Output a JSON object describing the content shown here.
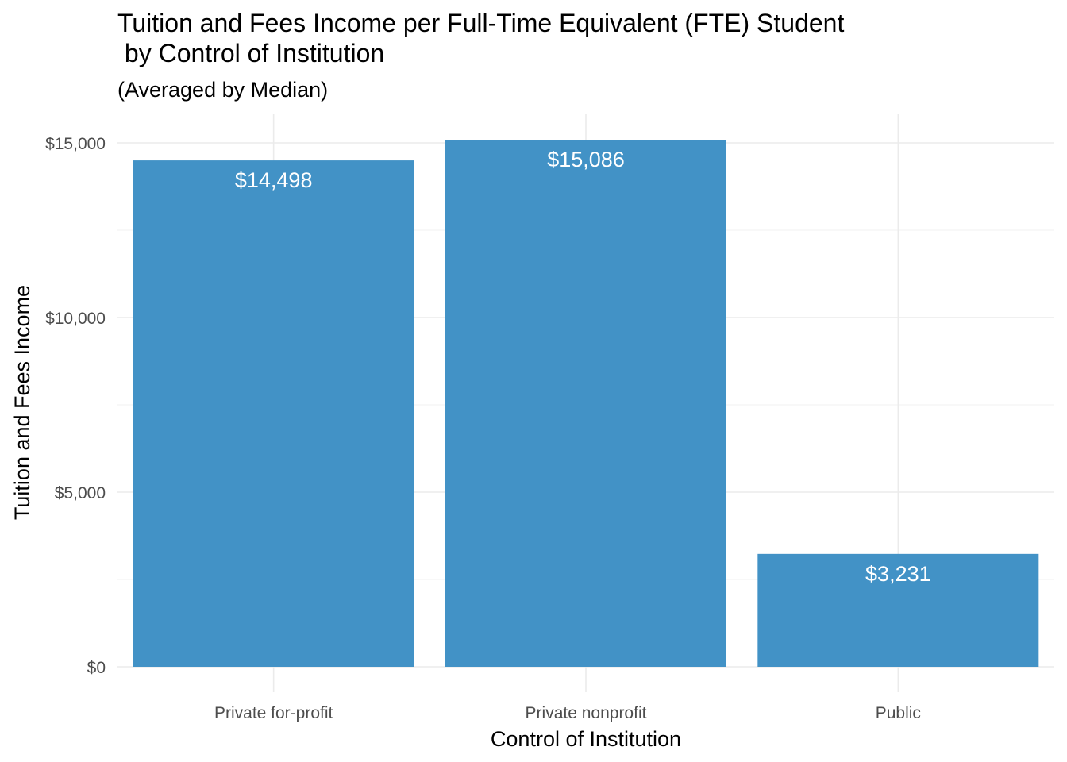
{
  "chart_data": {
    "type": "bar",
    "title_line1": "Tuition and Fees Income per Full-Time Equivalent (FTE) Student",
    "title_line2": " by Control of Institution",
    "subtitle": "(Averaged by Median)",
    "xlabel": "Control of Institution",
    "ylabel": "Tuition and Fees Income",
    "categories": [
      "Private for-profit",
      "Private nonprofit",
      "Public"
    ],
    "values": [
      14498,
      15086,
      3231
    ],
    "data_labels": [
      "$14,498",
      "$15,086",
      "$3,231"
    ],
    "y_ticks": [
      0,
      5000,
      10000,
      15000
    ],
    "y_tick_labels": [
      "$0",
      "$5,000",
      "$10,000",
      "$15,000"
    ],
    "ylim": [
      0,
      15800
    ],
    "grid": true,
    "bar_color": "#4292c6"
  }
}
